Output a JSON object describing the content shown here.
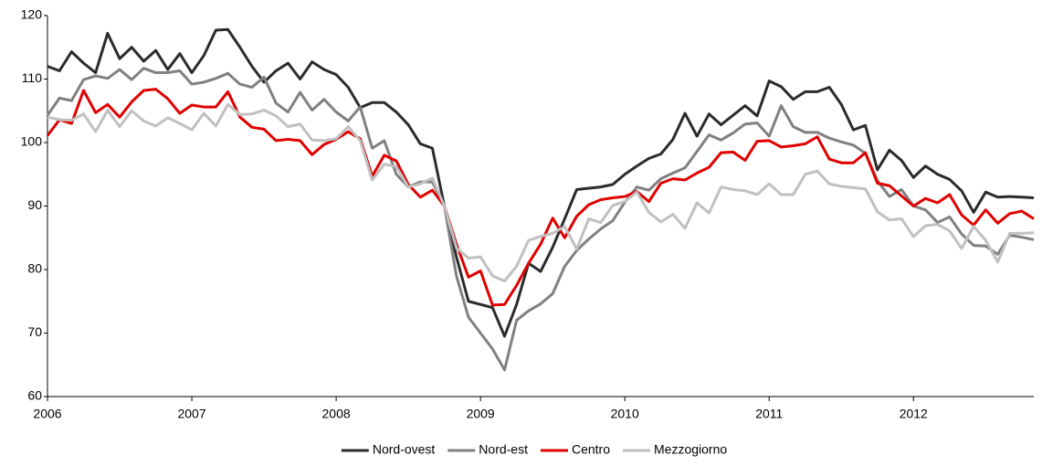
{
  "chart_data": {
    "type": "line",
    "categories": [
      "2006",
      null,
      null,
      null,
      null,
      null,
      null,
      null,
      null,
      null,
      null,
      null,
      "2007",
      null,
      null,
      null,
      null,
      null,
      null,
      null,
      null,
      null,
      null,
      null,
      "2008",
      null,
      null,
      null,
      null,
      null,
      null,
      null,
      null,
      null,
      null,
      null,
      "2009",
      null,
      null,
      null,
      null,
      null,
      null,
      null,
      null,
      null,
      null,
      null,
      "2010",
      null,
      null,
      null,
      null,
      null,
      null,
      null,
      null,
      null,
      null,
      null,
      "2011",
      null,
      null,
      null,
      null,
      null,
      null,
      null,
      null,
      null,
      null,
      null,
      "2012",
      null,
      null,
      null,
      null,
      null,
      null,
      null,
      null,
      null,
      null
    ],
    "ylim": [
      60,
      120
    ],
    "yticks": [
      60,
      70,
      80,
      90,
      100,
      110,
      120
    ],
    "grid": false,
    "legend": "bottom",
    "series": [
      {
        "name": "Nord-ovest",
        "color": "#2b2b2b",
        "values": [
          112,
          111.3,
          114.3,
          112.5,
          111,
          117.2,
          113.2,
          115,
          112.8,
          114.5,
          111.5,
          114,
          111,
          113.7,
          117.7,
          117.8,
          115,
          112,
          109.5,
          111.3,
          112.5,
          110,
          112.7,
          111.5,
          110.7,
          108.7,
          105.5,
          106.3,
          106.3,
          104.8,
          102.8,
          99.8,
          99.1,
          90,
          82,
          75,
          74.5,
          74,
          69.5,
          74.5,
          81,
          79.7,
          83.5,
          88,
          92.6,
          92.8,
          93,
          93.4,
          95,
          96.3,
          97.5,
          98.2,
          100.5,
          104.6,
          101,
          104.5,
          102.8,
          104.3,
          105.8,
          104.2,
          109.7,
          108.8,
          106.8,
          108,
          108,
          108.7,
          106,
          102,
          102.7,
          95.7,
          98.8,
          97.2,
          94.5,
          96.3,
          95,
          94.2,
          92.4,
          89,
          92.2,
          91.4,
          91.5,
          91.4,
          91.3
        ]
      },
      {
        "name": "Nord-est",
        "color": "#808080",
        "values": [
          104.3,
          107,
          106.6,
          109.9,
          110.5,
          110.1,
          111.5,
          109.9,
          111.7,
          111,
          111,
          111.3,
          109.2,
          109.5,
          110.1,
          110.9,
          109.2,
          108.7,
          110.3,
          106.2,
          104.8,
          107.9,
          105.1,
          106.8,
          104.8,
          103.4,
          105.6,
          99.1,
          100.3,
          95,
          93,
          93.8,
          93.8,
          90,
          79,
          72.5,
          70,
          67.5,
          64.2,
          72,
          73.5,
          74.6,
          76.2,
          80.5,
          83,
          84.8,
          86.4,
          87.7,
          90.6,
          93,
          92.5,
          94.3,
          95.2,
          96,
          98.6,
          101.2,
          100.4,
          101.5,
          102.9,
          103.1,
          101,
          105.8,
          102.5,
          101.6,
          101.6,
          100.7,
          100.1,
          99.6,
          98.3,
          94,
          91.5,
          92.6,
          90,
          89.4,
          87.4,
          88.3,
          85.6,
          83.8,
          83.7,
          82.4,
          85.4,
          85.1,
          84.7
        ]
      },
      {
        "name": "Centro",
        "color": "#e00000",
        "values": [
          101.1,
          103.6,
          103,
          108.2,
          104.7,
          106,
          104,
          106.4,
          108.2,
          108.4,
          106.9,
          104.6,
          105.9,
          105.6,
          105.6,
          108,
          104,
          102.4,
          102.1,
          100.3,
          100.5,
          100.3,
          98.1,
          99.7,
          100.5,
          101.7,
          100.6,
          94.7,
          98,
          97.1,
          93.4,
          91.4,
          92.5,
          90,
          84,
          78.8,
          79.8,
          74.4,
          74.5,
          77.5,
          81,
          84,
          88.1,
          85,
          88.4,
          90.2,
          91,
          91.3,
          91.5,
          92.3,
          90.7,
          93.6,
          94.3,
          94.1,
          95.2,
          96.1,
          98.4,
          98.5,
          97.2,
          100.2,
          100.3,
          99.3,
          99.5,
          99.8,
          100.9,
          97.4,
          96.8,
          96.8,
          98.4,
          93.6,
          93.2,
          91.6,
          90,
          91.2,
          90.5,
          91.8,
          88.6,
          87,
          89.4,
          87.3,
          88.8,
          89.2,
          88
        ]
      },
      {
        "name": "Mezzogiorno",
        "color": "#c0c0c0",
        "values": [
          104,
          103.6,
          103.5,
          104.5,
          101.7,
          105.1,
          102.5,
          105,
          103.4,
          102.6,
          103.9,
          103,
          102,
          104.6,
          102.6,
          106,
          104.4,
          104.5,
          105.1,
          104.2,
          102.5,
          102.9,
          100.4,
          100.3,
          100.6,
          102.5,
          100.3,
          94.1,
          96.6,
          96.2,
          93,
          93.5,
          94.4,
          90,
          83.4,
          81.8,
          82,
          79,
          78.2,
          80.5,
          84.6,
          85.2,
          85.7,
          86.8,
          83.2,
          88,
          87.4,
          90.1,
          90.7,
          92.2,
          89,
          87.5,
          88.7,
          86.5,
          90.5,
          88.9,
          93,
          92.6,
          92.4,
          91.8,
          93.5,
          91.8,
          91.8,
          95,
          95.5,
          93.5,
          93.1,
          92.9,
          92.7,
          89.1,
          87.8,
          88,
          85.2,
          86.9,
          87.1,
          86.1,
          83.3,
          86.8,
          84.6,
          81.2,
          85.7,
          85.7,
          85.8
        ]
      }
    ]
  }
}
